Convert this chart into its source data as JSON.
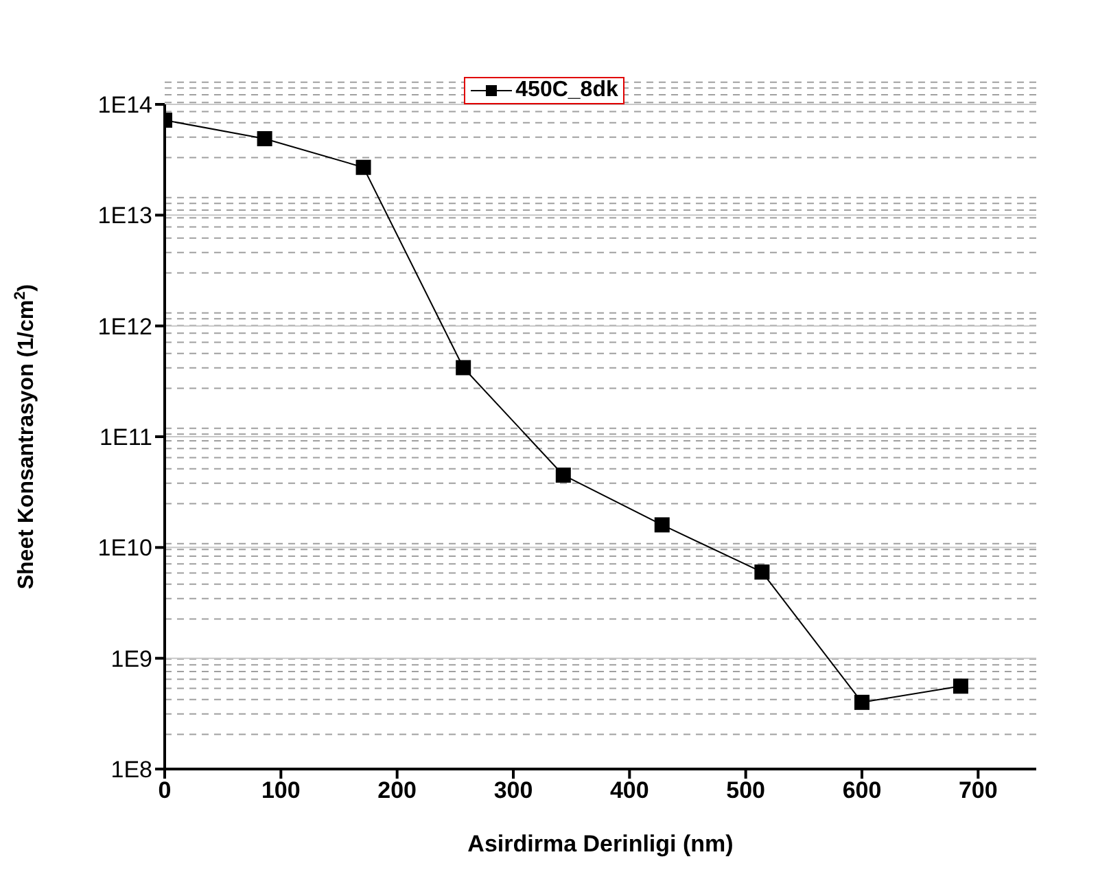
{
  "chart_data": {
    "type": "line",
    "xlabel": "Asirdirma Derinligi (nm)",
    "ylabel": "Sheet Konsantrasyon (1/cm$^{2}$)",
    "x": [
      0,
      86,
      171,
      257,
      343,
      428,
      514,
      600,
      685
    ],
    "series": [
      {
        "name": "450C_8dk",
        "color": "#000000",
        "values": [
          72000000000000,
          49000000000000,
          27000000000000,
          420000000000,
          45000000000,
          16000000000,
          6000000000,
          400000000,
          560000000
        ]
      }
    ],
    "xlim": [
      0,
      750
    ],
    "xticks": [
      0,
      100,
      200,
      300,
      400,
      500,
      600,
      700
    ],
    "ylim": [
      100000000,
      100000000000000
    ],
    "yticks": [
      {
        "value": 100000000,
        "label": "1E8"
      },
      {
        "value": 1000000000,
        "label": "1E9"
      },
      {
        "value": 10000000000,
        "label": "1E10"
      },
      {
        "value": 100000000000,
        "label": "1E11"
      },
      {
        "value": 1000000000000,
        "label": "1E12"
      },
      {
        "value": 10000000000000,
        "label": "1E13"
      },
      {
        "value": 100000000000000,
        "label": "1E14"
      }
    ],
    "log": "y",
    "grid": "y",
    "legend": "top",
    "marker": "square",
    "line_style": "solid"
  }
}
